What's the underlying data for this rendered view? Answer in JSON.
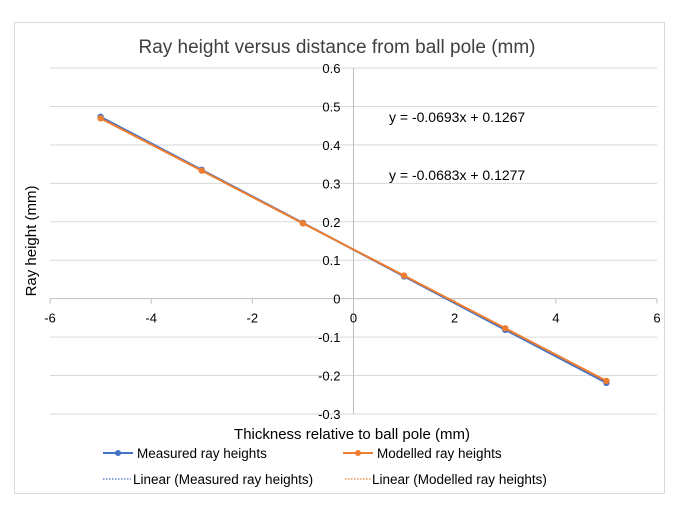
{
  "chart_data": {
    "type": "line",
    "title": "Ray height versus distance from ball pole (mm)",
    "xlabel": "Thickness relative to ball pole (mm)",
    "ylabel": "Ray height (mm)",
    "xlim": [
      -6,
      6
    ],
    "ylim": [
      -0.3,
      0.6
    ],
    "x_ticks": [
      -6,
      -4,
      -2,
      0,
      2,
      4,
      6
    ],
    "y_ticks": [
      -0.3,
      -0.2,
      -0.1,
      0,
      0.1,
      0.2,
      0.3,
      0.4,
      0.5,
      0.6
    ],
    "grid": "horizontal",
    "legend_position": "bottom",
    "series": [
      {
        "name": "Measured ray heights",
        "color": "#4472c4",
        "marker": "circle",
        "x": [
          -5,
          -3,
          -1,
          1,
          3,
          5
        ],
        "y": [
          0.473,
          0.335,
          0.197,
          0.058,
          -0.081,
          -0.219
        ]
      },
      {
        "name": "Modelled ray heights",
        "color": "#ed7d31",
        "marker": "circle",
        "x": [
          -5,
          -3,
          -1,
          1,
          3,
          5
        ],
        "y": [
          0.469,
          0.333,
          0.196,
          0.06,
          -0.077,
          -0.214
        ]
      }
    ],
    "trendlines": [
      {
        "name": "Linear (Measured ray heights)",
        "color": "#4472c4",
        "slope": -0.0693,
        "intercept": 0.1267,
        "equation": "y = -0.0693x + 0.1267"
      },
      {
        "name": "Linear (Modelled ray heights)",
        "color": "#ed7d31",
        "slope": -0.0683,
        "intercept": 0.1277,
        "equation": "y = -0.0683x + 0.1277"
      }
    ]
  }
}
